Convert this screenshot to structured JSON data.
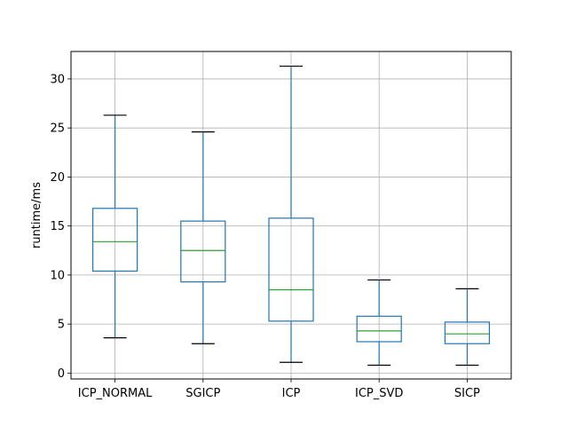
{
  "chart_data": {
    "type": "box",
    "title": "",
    "xlabel": "",
    "ylabel": "runtime/ms",
    "ylim": [
      -0.6,
      32.8
    ],
    "yticks": [
      0,
      5,
      10,
      15,
      20,
      25,
      30
    ],
    "grid": true,
    "categories": [
      "ICP_NORMAL",
      "SGICP",
      "ICP",
      "ICP_SVD",
      "SICP"
    ],
    "boxes": [
      {
        "category": "ICP_NORMAL",
        "whisker_low": 3.6,
        "q1": 10.4,
        "median": 13.4,
        "q3": 16.8,
        "whisker_high": 26.3
      },
      {
        "category": "SGICP",
        "whisker_low": 3.0,
        "q1": 9.3,
        "median": 12.5,
        "q3": 15.5,
        "whisker_high": 24.6
      },
      {
        "category": "ICP",
        "whisker_low": 1.1,
        "q1": 5.3,
        "median": 8.5,
        "q3": 15.8,
        "whisker_high": 31.3
      },
      {
        "category": "ICP_SVD",
        "whisker_low": 0.8,
        "q1": 3.2,
        "median": 4.3,
        "q3": 5.8,
        "whisker_high": 9.5
      },
      {
        "category": "SICP",
        "whisker_low": 0.8,
        "q1": 3.0,
        "median": 4.0,
        "q3": 5.2,
        "whisker_high": 8.6
      }
    ],
    "colors": {
      "box": "#1f77b4",
      "median": "#2ca02c",
      "whisker_cap": "#000000",
      "grid": "#b0b0b0"
    }
  }
}
